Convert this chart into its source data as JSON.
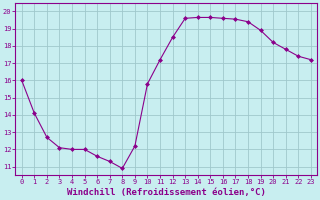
{
  "x": [
    0,
    1,
    2,
    3,
    4,
    5,
    6,
    7,
    8,
    9,
    10,
    11,
    12,
    13,
    14,
    15,
    16,
    17,
    18,
    19,
    20,
    21,
    22,
    23
  ],
  "y": [
    16.0,
    14.1,
    12.7,
    12.1,
    12.0,
    12.0,
    11.6,
    11.3,
    10.9,
    12.2,
    15.8,
    17.2,
    18.5,
    19.6,
    19.65,
    19.65,
    19.6,
    19.55,
    19.4,
    18.9,
    18.2,
    17.8,
    17.4,
    17.2
  ],
  "line_color": "#8B008B",
  "marker": "D",
  "marker_size": 2.0,
  "bg_color": "#C8EEF0",
  "grid_color": "#A0C8CC",
  "xlabel": "Windchill (Refroidissement éolien,°C)",
  "ylabel": "",
  "xlim": [
    -0.5,
    23.5
  ],
  "ylim": [
    10.5,
    20.5
  ],
  "yticks": [
    11,
    12,
    13,
    14,
    15,
    16,
    17,
    18,
    19,
    20
  ],
  "xticks": [
    0,
    1,
    2,
    3,
    4,
    5,
    6,
    7,
    8,
    9,
    10,
    11,
    12,
    13,
    14,
    15,
    16,
    17,
    18,
    19,
    20,
    21,
    22,
    23
  ],
  "tick_fontsize": 5.0,
  "xlabel_fontsize": 6.5
}
